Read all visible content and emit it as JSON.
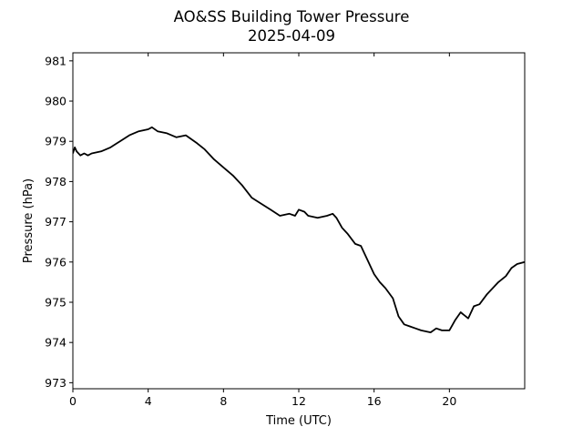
{
  "chart_data": {
    "type": "line",
    "title": "AO&SS Building Tower Pressure",
    "subtitle": "2025-04-09",
    "xlabel": "Time (UTC)",
    "ylabel": "Pressure (hPa)",
    "xlim": [
      0,
      24
    ],
    "ylim": [
      972.85,
      981.2
    ],
    "xticks": [
      0,
      4,
      8,
      12,
      16,
      20
    ],
    "yticks": [
      973,
      974,
      975,
      976,
      977,
      978,
      979,
      980,
      981
    ],
    "grid": false,
    "line_color": "#000000",
    "series": [
      {
        "x": [
          0.0,
          0.1,
          0.2,
          0.4,
          0.6,
          0.8,
          1.0,
          1.5,
          2.0,
          2.5,
          3.0,
          3.5,
          4.0,
          4.2,
          4.5,
          5.0,
          5.5,
          6.0,
          6.3,
          6.6,
          7.0,
          7.5,
          8.0,
          8.5,
          9.0,
          9.5,
          10.0,
          10.5,
          11.0,
          11.5,
          11.8,
          12.0,
          12.3,
          12.5,
          13.0,
          13.5,
          13.8,
          14.0,
          14.3,
          14.6,
          15.0,
          15.3,
          15.6,
          16.0,
          16.3,
          16.6,
          17.0,
          17.3,
          17.6,
          17.9,
          18.2,
          18.5,
          19.0,
          19.3,
          19.6,
          20.0,
          20.3,
          20.6,
          21.0,
          21.3,
          21.6,
          22.0,
          22.3,
          22.6,
          23.0,
          23.3,
          23.6,
          24.0
        ],
        "y": [
          978.7,
          978.85,
          978.75,
          978.65,
          978.7,
          978.65,
          978.7,
          978.75,
          978.85,
          979.0,
          979.15,
          979.25,
          979.3,
          979.35,
          979.25,
          979.2,
          979.1,
          979.15,
          979.05,
          978.95,
          978.8,
          978.55,
          978.35,
          978.15,
          977.9,
          977.6,
          977.45,
          977.3,
          977.15,
          977.2,
          977.15,
          977.3,
          977.25,
          977.15,
          977.1,
          977.15,
          977.2,
          977.1,
          976.85,
          976.7,
          976.45,
          976.4,
          976.1,
          975.7,
          975.5,
          975.35,
          975.1,
          974.65,
          974.45,
          974.4,
          974.35,
          974.3,
          974.25,
          974.35,
          974.3,
          974.3,
          974.55,
          974.75,
          974.6,
          974.9,
          974.95,
          975.2,
          975.35,
          975.5,
          975.65,
          975.85,
          975.95,
          976.0
        ]
      }
    ]
  }
}
